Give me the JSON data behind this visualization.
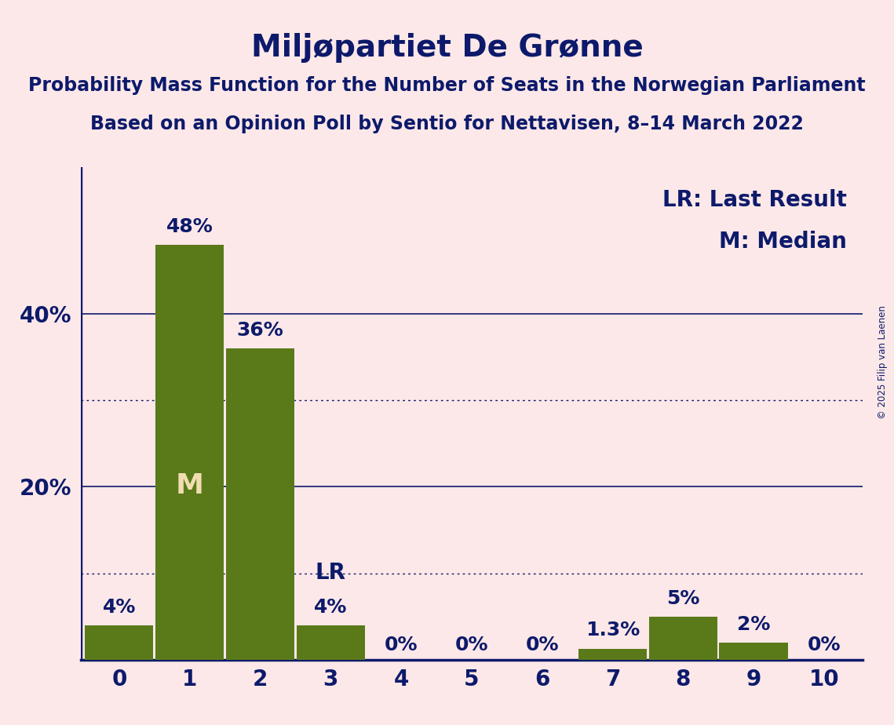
{
  "title": "Miljøpartiet De Grønne",
  "subtitle1": "Probability Mass Function for the Number of Seats in the Norwegian Parliament",
  "subtitle2": "Based on an Opinion Poll by Sentio for Nettavisen, 8–14 March 2022",
  "copyright": "© 2025 Filip van Laenen",
  "categories": [
    0,
    1,
    2,
    3,
    4,
    5,
    6,
    7,
    8,
    9,
    10
  ],
  "values": [
    0.04,
    0.48,
    0.36,
    0.04,
    0.0,
    0.0,
    0.0,
    0.013,
    0.05,
    0.02,
    0.0
  ],
  "bar_labels": [
    "4%",
    "48%",
    "36%",
    "4%",
    "0%",
    "0%",
    "0%",
    "1.3%",
    "5%",
    "2%",
    "0%"
  ],
  "bar_color": "#5a7a1a",
  "background_color": "#fce8e8",
  "text_color": "#0d1a6b",
  "median_bar": 1,
  "lr_bar": 3,
  "lr_value": 0.04,
  "solid_gridlines": [
    0.2,
    0.4
  ],
  "dotted_gridlines": [
    0.1,
    0.3
  ],
  "ylim": [
    0,
    0.57
  ],
  "legend_lr": "LR: Last Result",
  "legend_m": "M: Median",
  "title_fontsize": 28,
  "subtitle_fontsize": 17,
  "axis_label_fontsize": 20,
  "bar_label_fontsize": 18,
  "annotation_fontsize": 20,
  "m_fontsize": 26,
  "bar_width": 0.97
}
